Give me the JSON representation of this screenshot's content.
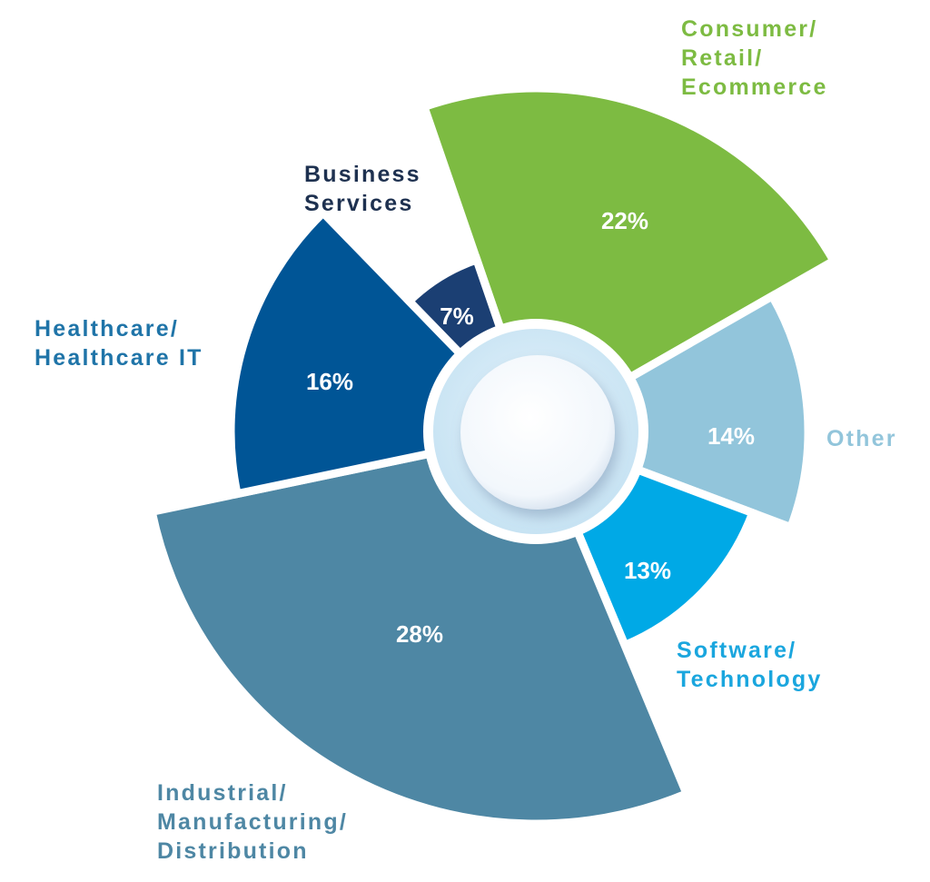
{
  "chart_data": {
    "type": "pie",
    "variant": "polar-area-donut",
    "title": "",
    "start_angle_deg": -19,
    "direction": "clockwise",
    "slices": [
      {
        "label_lines": [
          "Consumer/",
          "Retail/",
          "Ecommerce"
        ],
        "value": 22,
        "value_label": "22%",
        "color": "#7dbb42",
        "label_color": "#7dbb42"
      },
      {
        "label_lines": [
          "Other"
        ],
        "value": 14,
        "value_label": "14%",
        "color": "#92c5db",
        "label_color": "#92c5db"
      },
      {
        "label_lines": [
          "Software/",
          "Technology"
        ],
        "value": 13,
        "value_label": "13%",
        "color": "#00a9e6",
        "label_color": "#1aa6de"
      },
      {
        "label_lines": [
          "Industrial/",
          "Manufacturing/",
          "Distribution"
        ],
        "value": 28,
        "value_label": "28%",
        "color": "#4e87a4",
        "label_color": "#4e87a4"
      },
      {
        "label_lines": [
          "Healthcare/",
          "Healthcare IT"
        ],
        "value": 16,
        "value_label": "16%",
        "color": "#005596",
        "label_color": "#1f74a8"
      },
      {
        "label_lines": [
          "Business",
          "Services"
        ],
        "value": 7,
        "value_label": "7%",
        "color": "#1b3f73",
        "label_color": "#1e3150"
      }
    ],
    "legend": "none",
    "grid": false
  }
}
